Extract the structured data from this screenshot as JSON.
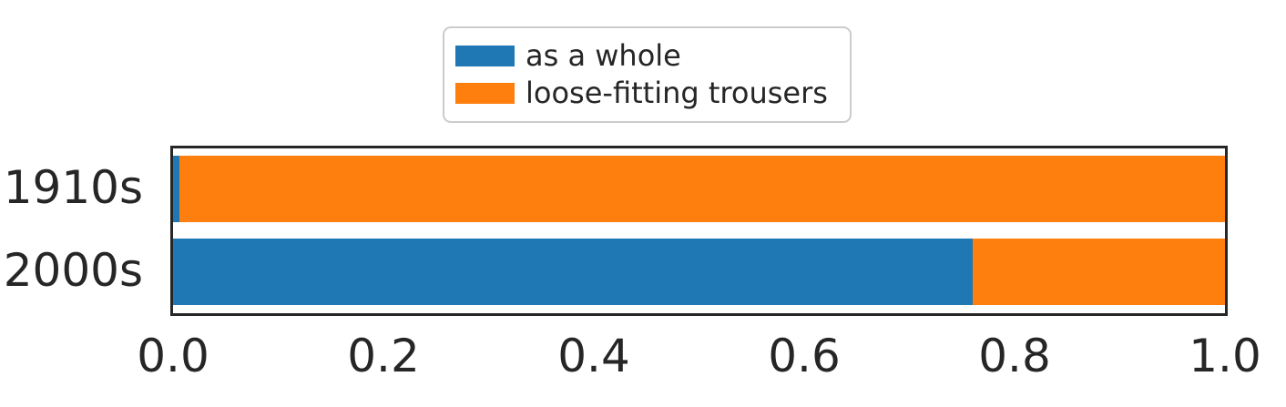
{
  "chart_data": {
    "type": "bar",
    "orientation": "horizontal",
    "stacked": true,
    "title": "",
    "xlabel": "",
    "ylabel": "",
    "categories": [
      "1910s",
      "2000s"
    ],
    "series": [
      {
        "name": "as a whole",
        "color": "#1f77b4",
        "values": [
          0.006,
          0.76
        ]
      },
      {
        "name": "loose-fitting trousers",
        "color": "#ff7f0e",
        "values": [
          0.994,
          0.24
        ]
      }
    ],
    "xlim": [
      0.0,
      1.0
    ],
    "xticks": [
      "0.0",
      "0.2",
      "0.4",
      "0.6",
      "0.8",
      "1.0"
    ],
    "grid": false,
    "legend_position": "upper center"
  },
  "colors": {
    "series_blue": "#1f77b4",
    "series_orange": "#ff7f0e",
    "spine": "#262626",
    "text": "#262626",
    "legend_border": "#cccccc",
    "background": "#ffffff"
  }
}
